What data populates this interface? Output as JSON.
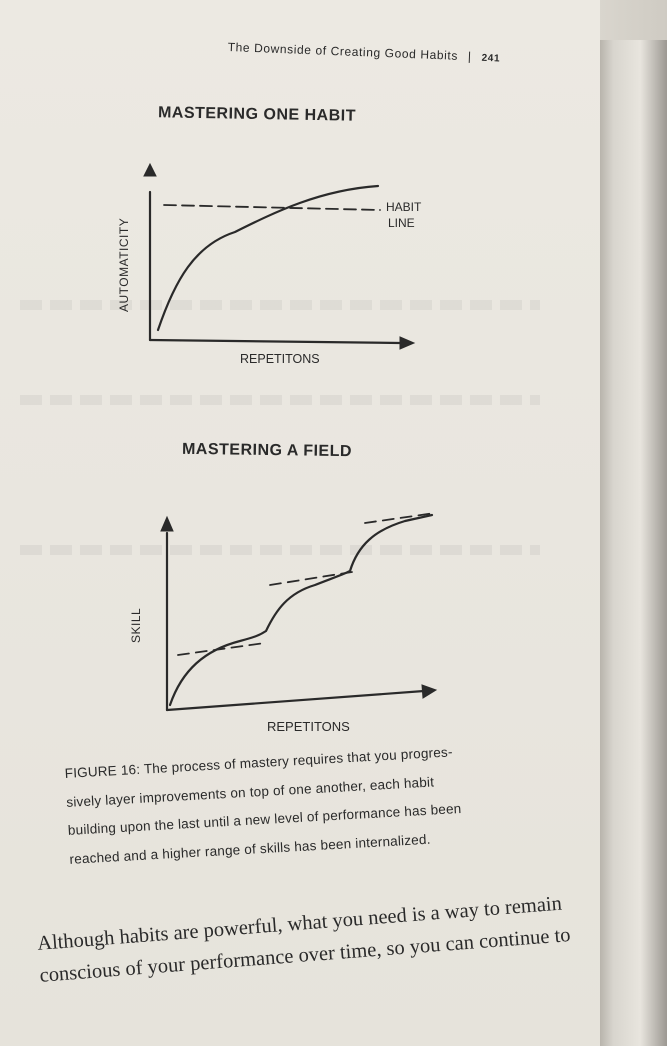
{
  "header": {
    "running_title": "The Downside of Creating Good Habits",
    "separator": "|",
    "page_number": "241"
  },
  "figure_one": {
    "title": "MASTERING ONE HABIT",
    "ylabel": "AUTOMATICITY",
    "xlabel": "REPETITONS",
    "annotation_line1": "HABIT",
    "annotation_line2": "LINE"
  },
  "figure_two": {
    "title": "MASTERING A FIELD",
    "ylabel": "SKILL",
    "xlabel": "REPETITONS"
  },
  "caption": {
    "lines": [
      "FIGURE 16: The process of mastery requires that you progres-",
      "sively layer improvements on top of one another, each habit",
      "building upon the last until a new level of performance has been",
      "reached and a higher range of skills has been internalized."
    ]
  },
  "body": {
    "lines": [
      "Although habits are powerful, what you need is a way to remain",
      "conscious of your performance over time, so you can continue to"
    ]
  },
  "colors": {
    "ink": "#2a2a2a",
    "paper": "#ebe8e1"
  }
}
